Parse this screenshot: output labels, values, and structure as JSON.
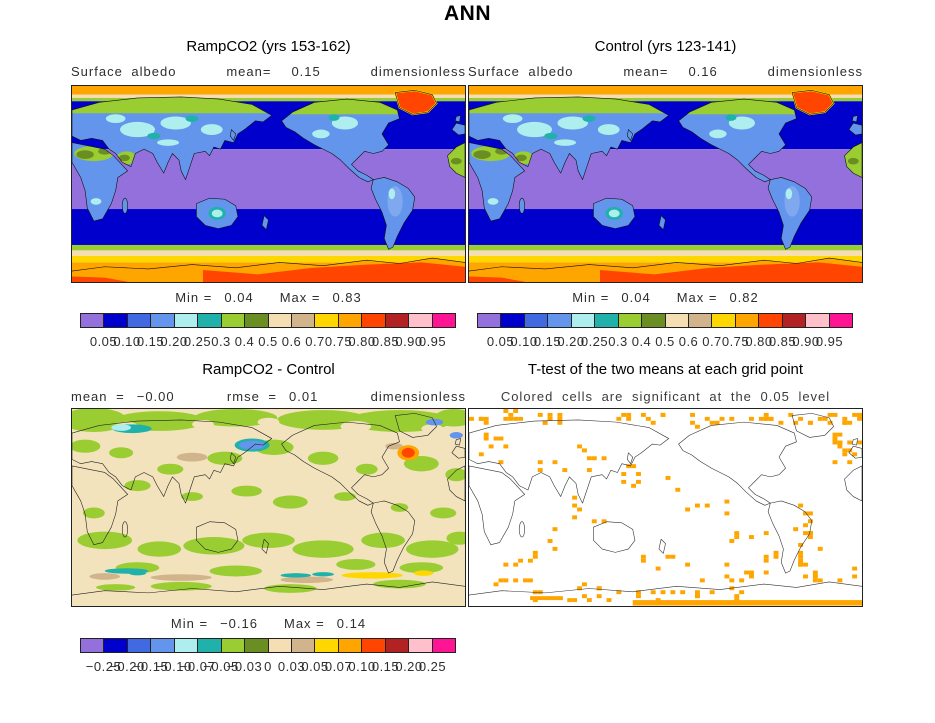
{
  "title": "ANN",
  "colors": {
    "palette": [
      "#9370DB",
      "#0000CD",
      "#4169E1",
      "#6495ED",
      "#AFEEEE",
      "#20B2AA",
      "#9ACD32",
      "#6B8E23",
      "#F5DEB3",
      "#D2B48C",
      "#FFD700",
      "#FFA500",
      "#FF4500",
      "#B22222",
      "#FFC0CB",
      "#FF1493"
    ],
    "significance": "#FFA500",
    "diff_background": "#F2E3BD"
  },
  "panels": {
    "ramp": {
      "title": "RampCO2 (yrs 153-162)",
      "variable": "Surface albedo",
      "mean_label": "mean=",
      "mean": "0.15",
      "units": "dimensionless",
      "min_label": "Min =",
      "min": "0.04",
      "max_label": "Max =",
      "max": "0.83",
      "ticks": [
        "0.05",
        "0.10",
        "0.15",
        "0.20",
        "0.25",
        "0.3",
        "0.4",
        "0.5",
        "0.6",
        "0.7",
        "0.75",
        "0.80",
        "0.85",
        "0.90",
        "0.95"
      ]
    },
    "control": {
      "title": "Control (yrs 123-141)",
      "variable": "Surface albedo",
      "mean_label": "mean=",
      "mean": "0.16",
      "units": "dimensionless",
      "min_label": "Min =",
      "min": "0.04",
      "max_label": "Max =",
      "max": "0.82",
      "ticks": [
        "0.05",
        "0.10",
        "0.15",
        "0.20",
        "0.25",
        "0.3",
        "0.4",
        "0.5",
        "0.6",
        "0.7",
        "0.75",
        "0.80",
        "0.85",
        "0.90",
        "0.95"
      ]
    },
    "diff": {
      "title": "RampCO2 - Control",
      "mean_label": "mean =",
      "mean": "−0.00",
      "rmse_label": "rmse =",
      "rmse": "0.01",
      "units": "dimensionless",
      "min_label": "Min =",
      "min": "−0.16",
      "max_label": "Max =",
      "max": "0.14",
      "ticks": [
        "−0.25",
        "−0.20",
        "−0.15",
        "−0.10",
        "−0.07",
        "−0.05",
        "−0.03",
        "0",
        "0.03",
        "0.05",
        "0.07",
        "0.10",
        "0.15",
        "0.20",
        "0.25"
      ]
    },
    "ttest": {
      "title": "T-test of the two means at each grid point",
      "subtitle": "Colored cells are significant at the 0.05 level"
    }
  },
  "chart_data": [
    {
      "type": "heatmap",
      "subtype": "filled-contour-world-map",
      "title": "RampCO2 (yrs 153-162)",
      "variable": "Surface albedo",
      "units": "dimensionless",
      "mean": 0.15,
      "min": 0.04,
      "max": 0.83,
      "contour_levels": [
        0.05,
        0.1,
        0.15,
        0.2,
        0.25,
        0.3,
        0.4,
        0.5,
        0.6,
        0.7,
        0.75,
        0.8,
        0.85,
        0.9,
        0.95
      ],
      "palette": [
        "#9370DB",
        "#0000CD",
        "#4169E1",
        "#6495ED",
        "#AFEEEE",
        "#20B2AA",
        "#9ACD32",
        "#6B8E23",
        "#F5DEB3",
        "#D2B48C",
        "#FFD700",
        "#FFA500",
        "#FF4500",
        "#B22222",
        "#FFC0CB",
        "#FF1493"
      ],
      "projection": "equirectangular, Pacific-centered",
      "legend_position": "below",
      "notes": "Tropical oceans lowest albedo (purple 0.05-0.10); mid-latitude oceans blue; continents blue/teal/green; Sahara and boreal land green; Greenland and Antarctica high albedo orange/red"
    },
    {
      "type": "heatmap",
      "subtype": "filled-contour-world-map",
      "title": "Control (yrs 123-141)",
      "variable": "Surface albedo",
      "units": "dimensionless",
      "mean": 0.16,
      "min": 0.04,
      "max": 0.82,
      "contour_levels": [
        0.05,
        0.1,
        0.15,
        0.2,
        0.25,
        0.3,
        0.4,
        0.5,
        0.6,
        0.7,
        0.75,
        0.8,
        0.85,
        0.9,
        0.95
      ],
      "palette": [
        "#9370DB",
        "#0000CD",
        "#4169E1",
        "#6495ED",
        "#AFEEEE",
        "#20B2AA",
        "#9ACD32",
        "#6B8E23",
        "#F5DEB3",
        "#D2B48C",
        "#FFD700",
        "#FFA500",
        "#FF4500",
        "#B22222",
        "#FFC0CB",
        "#FF1493"
      ],
      "projection": "equirectangular, Pacific-centered",
      "legend_position": "below"
    },
    {
      "type": "heatmap",
      "subtype": "filled-contour-world-map-difference",
      "title": "RampCO2 - Control",
      "units": "dimensionless",
      "mean": -0.0,
      "rmse": 0.01,
      "min": -0.16,
      "max": 0.14,
      "contour_levels": [
        -0.25,
        -0.2,
        -0.15,
        -0.1,
        -0.07,
        -0.05,
        -0.03,
        0,
        0.03,
        0.05,
        0.07,
        0.1,
        0.15,
        0.2,
        0.25
      ],
      "palette": [
        "#9370DB",
        "#0000CD",
        "#4169E1",
        "#6495ED",
        "#AFEEEE",
        "#20B2AA",
        "#9ACD32",
        "#6B8E23",
        "#F5DEB3",
        "#D2B48C",
        "#FFD700",
        "#FFA500",
        "#FF4500",
        "#B22222",
        "#FFC0CB",
        "#FF1493"
      ],
      "projection": "equirectangular, Pacific-centered",
      "legend_position": "below",
      "notes": "Mostly near-zero differences (beige/green); isolated teal/blue negative spots in Arctic and Southern Ocean; orange-red positive blob near Labrador Sea; yellow/tan streaks near Antarctic sea-ice edge"
    },
    {
      "type": "heatmap",
      "subtype": "significance-mask-world-map",
      "title": "T-test of the two means at each grid point",
      "note": "Colored cells are significant at the 0.05 level",
      "significant_color": "#FFA500",
      "background": "#FFFFFF",
      "projection": "equirectangular, Pacific-centered",
      "notes": "Scattered significant cells concentrated in Arctic, North Atlantic, west coast of South America, Southern Ocean and along the Antarctic bottom edge"
    }
  ]
}
